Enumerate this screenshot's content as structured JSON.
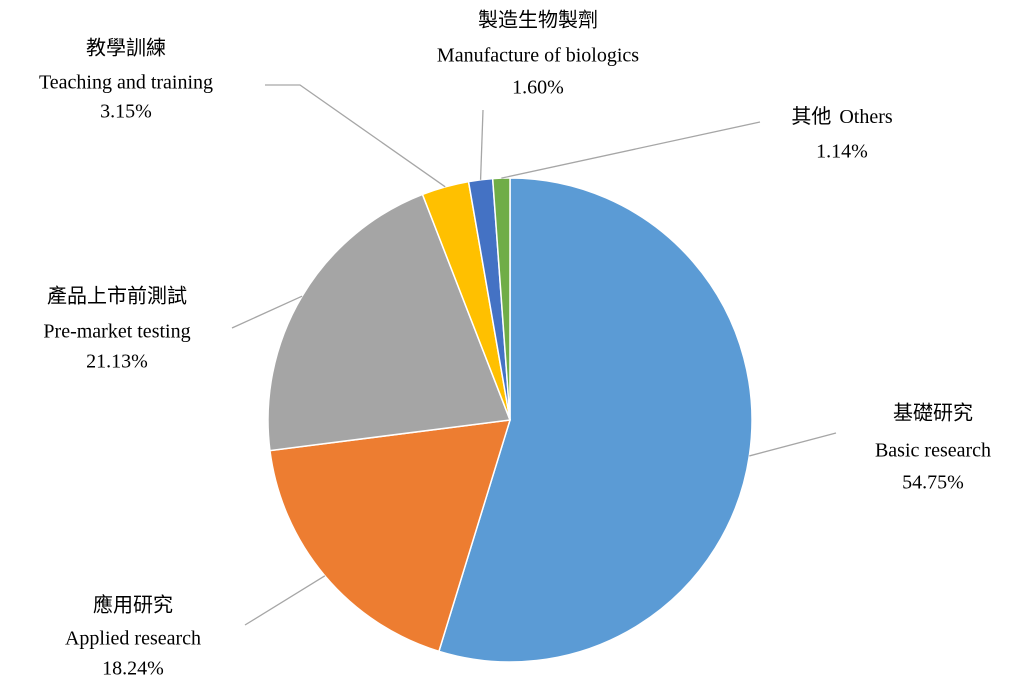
{
  "chart_data": {
    "type": "pie",
    "categories_zh": [
      "基礎研究",
      "應用研究",
      "產品上市前測試",
      "教學訓練",
      "製造生物製劑",
      "其他"
    ],
    "categories": [
      "Basic research",
      "Applied research",
      "Pre-market testing",
      "Teaching and training",
      "Manufacture of biologics",
      "Others"
    ],
    "values": [
      54.75,
      18.24,
      21.13,
      3.15,
      1.6,
      1.14
    ],
    "value_labels": [
      "54.75%",
      "18.24%",
      "21.13%",
      "3.15%",
      "1.60%",
      "1.14%"
    ],
    "colors": [
      "#5b9bd5",
      "#ed7d31",
      "#a5a5a5",
      "#ffc000",
      "#4472c4",
      "#70ad47"
    ]
  }
}
